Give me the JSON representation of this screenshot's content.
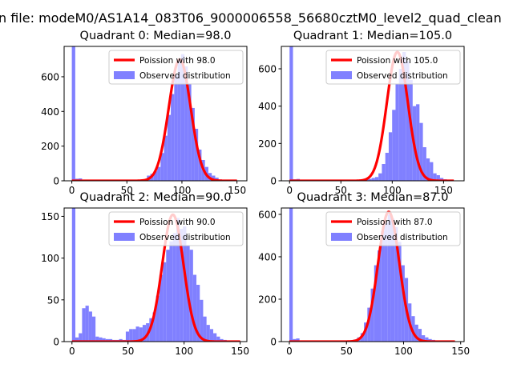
{
  "figure": {
    "suptitle": "n file: modeM0/AS1A14_083T06_9000006558_56680cztM0_level2_quad_clean"
  },
  "colors": {
    "bar": "#8080ff",
    "fit": "#ff0000",
    "axis": "#000000",
    "background": "#ffffff"
  },
  "chart_data": [
    {
      "type": "bar",
      "title": "Quadrant 0: Median=98.0",
      "xlabel": "",
      "ylabel": "",
      "xlim": [
        -7,
        159
      ],
      "ylim": [
        0,
        775
      ],
      "xticks": [
        0,
        50,
        100,
        150
      ],
      "yticks": [
        0,
        200,
        400,
        600
      ],
      "bin_width": 3.1,
      "legend": {
        "position": "top-right",
        "fit_label": "Poission with 98.0",
        "hist_label": "Observed distribution"
      },
      "histogram": {
        "edges": [
          0,
          3.1,
          6.2,
          9.3,
          12.4,
          15.5,
          18.6,
          21.7,
          24.8,
          27.9,
          31,
          34.1,
          37.2,
          40.3,
          43.4,
          46.5,
          49.6,
          52.7,
          55.8,
          58.9,
          62,
          65.1,
          68.2,
          71.3,
          74.4,
          77.5,
          80.6,
          83.7,
          86.8,
          89.9,
          93,
          96.1,
          99.2,
          102.3,
          105.4,
          108.5,
          111.6,
          114.7,
          117.8,
          120.9,
          124,
          127.1,
          130.2,
          133.3,
          136.4,
          139.5,
          142.6,
          145.7,
          148.8
        ],
        "counts": [
          775,
          12,
          14,
          5,
          3,
          2,
          2,
          2,
          2,
          1,
          1,
          1,
          1,
          1,
          1,
          1,
          2,
          2,
          3,
          4,
          5,
          8,
          30,
          40,
          55,
          80,
          160,
          260,
          380,
          500,
          610,
          700,
          730,
          660,
          560,
          420,
          300,
          180,
          120,
          80,
          45,
          30,
          18,
          8,
          4,
          3,
          2,
          1,
          1
        ]
      },
      "fit": {
        "mean": 98,
        "peak": 700,
        "sigma": 9.9,
        "x_min": 0,
        "x_max": 150
      }
    },
    {
      "type": "bar",
      "title": "Quadrant 1: Median=105.0",
      "xlabel": "",
      "ylabel": "",
      "xlim": [
        -8,
        170
      ],
      "ylim": [
        0,
        720
      ],
      "xticks": [
        0,
        50,
        100,
        150
      ],
      "yticks": [
        0,
        200,
        400,
        600
      ],
      "bin_width": 3.33,
      "legend": {
        "position": "top-right",
        "fit_label": "Poission with 105.0",
        "hist_label": "Observed distribution"
      },
      "histogram": {
        "edges": [
          0,
          3.33,
          6.66,
          9.99,
          13.32,
          16.65,
          19.98,
          23.31,
          26.64,
          29.97,
          33.3,
          36.63,
          39.96,
          43.29,
          46.62,
          49.95,
          53.28,
          56.61,
          59.94,
          63.27,
          66.6,
          69.93,
          73.26,
          76.59,
          79.92,
          83.25,
          86.58,
          89.91,
          93.24,
          96.57,
          99.9,
          103.23,
          106.56,
          109.89,
          113.22,
          116.55,
          119.88,
          123.21,
          126.54,
          129.87,
          133.2,
          136.53,
          139.86,
          143.19,
          146.52,
          149.85,
          153.18,
          156.51,
          159.84
        ],
        "counts": [
          720,
          8,
          10,
          4,
          2,
          2,
          2,
          1,
          1,
          1,
          1,
          1,
          1,
          1,
          1,
          1,
          1,
          2,
          2,
          2,
          3,
          4,
          6,
          10,
          15,
          20,
          40,
          90,
          150,
          260,
          380,
          520,
          600,
          690,
          640,
          540,
          400,
          410,
          310,
          180,
          120,
          100,
          40,
          30,
          15,
          8,
          4,
          2,
          1
        ]
      },
      "fit": {
        "mean": 105,
        "peak": 690,
        "sigma": 10.25,
        "x_min": 0,
        "x_max": 160
      }
    },
    {
      "type": "bar",
      "title": "Quadrant 2: Median=90.0",
      "xlabel": "",
      "ylabel": "",
      "xlim": [
        -7,
        156
      ],
      "ylim": [
        0,
        160
      ],
      "xticks": [
        0,
        50,
        100,
        150
      ],
      "yticks": [
        0,
        50,
        100,
        150
      ],
      "bin_width": 3.0,
      "legend": {
        "position": "top-right",
        "fit_label": "Poission with 90.0",
        "hist_label": "Observed distribution"
      },
      "histogram": {
        "edges": [
          0,
          3,
          6,
          9,
          12,
          15,
          18,
          21,
          24,
          27,
          30,
          33,
          36,
          39,
          42,
          45,
          48,
          51,
          54,
          57,
          60,
          63,
          66,
          69,
          72,
          75,
          78,
          81,
          84,
          87,
          90,
          93,
          96,
          99,
          102,
          105,
          108,
          111,
          114,
          117,
          120,
          123,
          126,
          129,
          132,
          135,
          138,
          141,
          144,
          147
        ],
        "counts": [
          160,
          5,
          10,
          40,
          43,
          36,
          30,
          6,
          5,
          4,
          3,
          3,
          2,
          2,
          3,
          2,
          12,
          15,
          15,
          18,
          17,
          20,
          22,
          28,
          35,
          55,
          80,
          95,
          110,
          120,
          130,
          148,
          135,
          138,
          115,
          110,
          80,
          68,
          50,
          30,
          20,
          15,
          10,
          6,
          3,
          2,
          1,
          1,
          1,
          1
        ]
      },
      "fit": {
        "mean": 90,
        "peak": 152,
        "sigma": 9.5,
        "x_min": 0,
        "x_max": 150
      }
    },
    {
      "type": "bar",
      "title": "Quadrant 3: Median=87.0",
      "xlabel": "",
      "ylabel": "",
      "xlim": [
        -7,
        153
      ],
      "ylim": [
        0,
        630
      ],
      "xticks": [
        0,
        50,
        100,
        150
      ],
      "yticks": [
        0,
        200,
        400,
        600
      ],
      "bin_width": 2.97,
      "legend": {
        "position": "top-right",
        "fit_label": "Poission with 87.0",
        "hist_label": "Observed distribution"
      },
      "histogram": {
        "edges": [
          0,
          2.97,
          5.94,
          8.91,
          11.88,
          14.85,
          17.82,
          20.79,
          23.76,
          26.73,
          29.7,
          32.67,
          35.64,
          38.61,
          41.58,
          44.55,
          47.52,
          50.49,
          53.46,
          56.43,
          59.4,
          62.37,
          65.34,
          68.31,
          71.28,
          74.25,
          77.22,
          80.19,
          83.16,
          86.13,
          89.1,
          92.07,
          95.04,
          98.01,
          100.98,
          103.95,
          106.92,
          109.89,
          112.86,
          115.83,
          118.8,
          121.77,
          124.74,
          127.71,
          130.68,
          133.65,
          136.62,
          139.59,
          142.56
        ],
        "counts": [
          630,
          12,
          15,
          5,
          2,
          2,
          1,
          1,
          1,
          1,
          1,
          1,
          1,
          1,
          1,
          1,
          1,
          2,
          4,
          10,
          20,
          40,
          90,
          160,
          250,
          360,
          430,
          520,
          560,
          600,
          580,
          540,
          470,
          360,
          300,
          180,
          120,
          80,
          60,
          30,
          20,
          12,
          8,
          4,
          3,
          2,
          1,
          1,
          1
        ]
      },
      "fit": {
        "mean": 87,
        "peak": 612,
        "sigma": 9.3,
        "x_min": 0,
        "x_max": 145
      }
    }
  ]
}
